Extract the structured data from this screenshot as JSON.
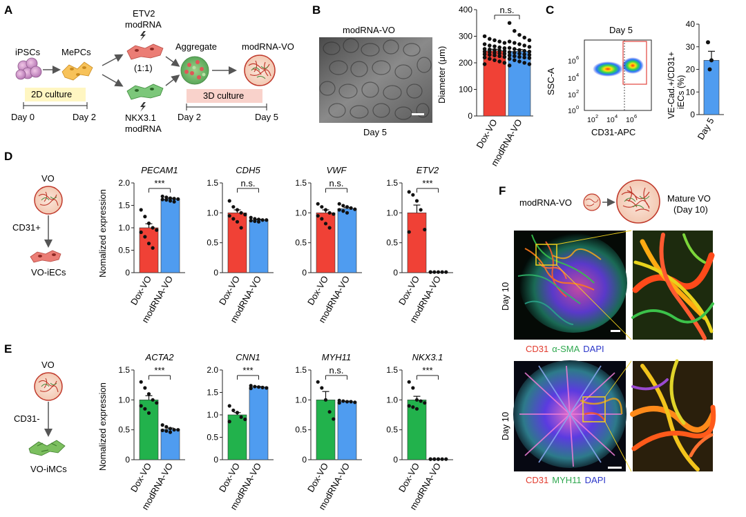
{
  "colors": {
    "dox": "#f04136",
    "modrna": "#4f9cf0",
    "green_bar": "#22b24c",
    "etv2_text": "#e0555a",
    "nkx_text": "#2fae3f",
    "culture2d": "#fff6c2",
    "culture3d": "#f9d2cb",
    "gate": "#e2433d",
    "panel_f_red": "#e23b2e",
    "panel_f_green": "#2fa84f",
    "panel_f_blue": "#2b36c9"
  },
  "panel_labels": {
    "a": "A",
    "b": "B",
    "c": "C",
    "d": "D",
    "e": "E",
    "f": "F"
  },
  "panel_a": {
    "ipscs": "iPSCs",
    "mepcs": "MePCs",
    "etv2": "ETV2",
    "modrna_top": "modRNA",
    "ratio": "(1:1)",
    "nkx": "NKX3.1",
    "modrna_bottom": "modRNA",
    "aggregate": "Aggregate",
    "modrna_vo": "modRNA-VO",
    "culture_2d": "2D culture",
    "culture_3d": "3D culture",
    "day0": "Day 0",
    "day2a": "Day 2",
    "day2b": "Day 2",
    "day5": "Day 5",
    "icons": [
      "ipsc-cluster-icon",
      "mepc-cells-icon",
      "etv2-cells-icon",
      "nkx-cells-icon",
      "aggregate-icon",
      "vascular-organoid-icon",
      "lightning-icon"
    ]
  },
  "panel_b": {
    "image_title": "modRNA-VO",
    "image_caption": "Day 5",
    "chart_data": {
      "type": "bar",
      "categories": [
        "Dox-VO",
        "modRNA-VO"
      ],
      "values": [
        245,
        243
      ],
      "errors": [
        6,
        7
      ],
      "ylabel": "Diameter (μm)",
      "ylim": [
        0,
        400
      ],
      "yticks": [
        0,
        100,
        200,
        300,
        400
      ],
      "significance": "n.s.",
      "points": [
        [
          300,
          290,
          285,
          280,
          275,
          270,
          265,
          262,
          258,
          255,
          252,
          250,
          248,
          246,
          244,
          242,
          240,
          238,
          236,
          234,
          232,
          230,
          228,
          225,
          222,
          220,
          215,
          210,
          205,
          200,
          195
        ],
        [
          350,
          320,
          305,
          295,
          285,
          280,
          275,
          270,
          265,
          260,
          256,
          252,
          248,
          245,
          242,
          240,
          238,
          235,
          232,
          230,
          228,
          225,
          222,
          220,
          218,
          215,
          210,
          205,
          200,
          195,
          190
        ]
      ]
    }
  },
  "panel_c": {
    "title": "Day 5",
    "flow_xlabel": "CD31-APC",
    "flow_ylabel": "SSC-A",
    "flow_xticks": [
      "10",
      "10",
      "10"
    ],
    "flow_xexp": [
      "2",
      "4",
      "6"
    ],
    "flow_yticks": [
      "10",
      "10",
      "10",
      "10"
    ],
    "flow_yexp": [
      "6",
      "4",
      "2",
      "0"
    ],
    "chart_data": {
      "type": "bar",
      "categories": [
        "Day 5"
      ],
      "values": [
        24
      ],
      "errors": [
        4
      ],
      "points": [
        [
          32,
          20,
          24
        ]
      ],
      "ylabel": "VE-Cad.+/CD31+ iECs (%)",
      "ylim": [
        0,
        40
      ],
      "yticks": [
        0,
        10,
        20,
        30,
        40
      ]
    }
  },
  "panel_d": {
    "schematic_top": "VO",
    "schematic_sort": "CD31+",
    "schematic_bottom": "VO-iECs",
    "ylabel": "Nomalized expression",
    "chart_data": [
      {
        "type": "bar",
        "title": "PECAM1",
        "categories": [
          "Dox-VO",
          "modRNA-VO"
        ],
        "values": [
          1.0,
          1.64
        ],
        "errors": [
          0.09,
          0.02
        ],
        "ylim": [
          0,
          2.0
        ],
        "yticks": [
          0,
          0.5,
          1.0,
          1.5,
          2.0
        ],
        "significance": "***",
        "points": [
          [
            1.4,
            1.25,
            1.1,
            1.0,
            0.95,
            0.9,
            0.8,
            0.65,
            0.55
          ],
          [
            1.7,
            1.68,
            1.66,
            1.65,
            1.64,
            1.63,
            1.62,
            1.6,
            1.58
          ]
        ]
      },
      {
        "type": "bar",
        "title": "CDH5",
        "categories": [
          "Dox-VO",
          "modRNA-VO"
        ],
        "values": [
          1.0,
          0.88
        ],
        "errors": [
          0.05,
          0.01
        ],
        "ylim": [
          0,
          1.5
        ],
        "yticks": [
          0,
          0.5,
          1.0,
          1.5
        ],
        "significance": "n.s.",
        "points": [
          [
            1.2,
            1.1,
            1.05,
            1.0,
            0.97,
            0.95,
            0.9,
            0.85,
            0.75
          ],
          [
            0.92,
            0.9,
            0.89,
            0.88,
            0.88,
            0.87,
            0.86,
            0.85
          ]
        ]
      },
      {
        "type": "bar",
        "title": "VWF",
        "categories": [
          "Dox-VO",
          "modRNA-VO"
        ],
        "values": [
          1.0,
          1.07
        ],
        "errors": [
          0.05,
          0.02
        ],
        "ylim": [
          0,
          1.5
        ],
        "yticks": [
          0,
          0.5,
          1.0,
          1.5
        ],
        "significance": "n.s.",
        "points": [
          [
            1.15,
            1.1,
            1.05,
            1.0,
            0.98,
            0.95,
            0.9,
            0.82,
            0.75
          ],
          [
            1.15,
            1.12,
            1.1,
            1.08,
            1.06,
            1.05,
            1.03,
            1.0
          ]
        ]
      },
      {
        "type": "bar",
        "title": "ETV2",
        "categories": [
          "Dox-VO",
          "modRNA-VO"
        ],
        "values": [
          1.0,
          0.01
        ],
        "errors": [
          0.13,
          0.0
        ],
        "ylim": [
          0,
          1.5
        ],
        "yticks": [
          0,
          0.5,
          1.0,
          1.5
        ],
        "significance": "***",
        "points": [
          [
            1.35,
            1.3,
            1.2,
            1.05,
            0.72,
            0.68
          ],
          [
            0.01,
            0.01,
            0.01,
            0.01,
            0.01,
            0.01
          ]
        ]
      }
    ]
  },
  "panel_e": {
    "schematic_top": "VO",
    "schematic_sort": "CD31-",
    "schematic_bottom": "VO-iMCs",
    "ylabel": "Nomalized expression",
    "chart_data": [
      {
        "type": "bar",
        "title": "ACTA2",
        "categories": [
          "Dox-VO",
          "modRNA-VO"
        ],
        "values": [
          1.0,
          0.51
        ],
        "errors": [
          0.07,
          0.02
        ],
        "ylim": [
          0,
          1.5
        ],
        "yticks": [
          0,
          0.5,
          1.0,
          1.5
        ],
        "significance": "***",
        "points": [
          [
            1.3,
            1.2,
            1.1,
            1.0,
            0.95,
            0.9,
            0.85,
            0.78
          ],
          [
            0.58,
            0.55,
            0.52,
            0.5,
            0.5,
            0.49,
            0.48,
            0.46
          ]
        ]
      },
      {
        "type": "bar",
        "title": "CNN1",
        "categories": [
          "Dox-VO",
          "modRNA-VO"
        ],
        "values": [
          1.0,
          1.62
        ],
        "errors": [
          0.05,
          0.01
        ],
        "ylim": [
          0,
          2.0
        ],
        "yticks": [
          0,
          0.5,
          1.0,
          1.5,
          2.0
        ],
        "significance": "***",
        "points": [
          [
            1.2,
            1.1,
            1.05,
            0.95,
            0.9,
            0.85
          ],
          [
            1.65,
            1.63,
            1.62,
            1.61,
            1.6,
            1.59
          ]
        ]
      },
      {
        "type": "bar",
        "title": "MYH11",
        "categories": [
          "Dox-VO",
          "modRNA-VO"
        ],
        "values": [
          1.0,
          0.97
        ],
        "errors": [
          0.14,
          0.01
        ],
        "ylim": [
          0,
          1.5
        ],
        "yticks": [
          0,
          0.5,
          1.0,
          1.5
        ],
        "significance": "n.s.",
        "points": [
          [
            1.3,
            1.2,
            1.0,
            0.8,
            0.68
          ],
          [
            0.99,
            0.98,
            0.97,
            0.97,
            0.96,
            0.95
          ]
        ]
      },
      {
        "type": "bar",
        "title": "NKX3.1",
        "categories": [
          "Dox-VO",
          "modRNA-VO"
        ],
        "values": [
          1.0,
          0.01
        ],
        "errors": [
          0.06,
          0.0
        ],
        "ylim": [
          0,
          1.5
        ],
        "yticks": [
          0,
          0.5,
          1.0,
          1.5
        ],
        "significance": "***",
        "points": [
          [
            1.3,
            1.2,
            1.0,
            0.98,
            0.95,
            0.9,
            0.88,
            0.85
          ],
          [
            0.01,
            0.01,
            0.01,
            0.01,
            0.01,
            0.01,
            0.01,
            0.01
          ]
        ]
      }
    ]
  },
  "panel_f": {
    "modrna_vo": "modRNA-VO",
    "mature_vo": "Mature VO",
    "mature_day": "(Day 10)",
    "day_top": "Day 10",
    "day_bottom": "Day 10",
    "legend_top": {
      "cd31": "CD31",
      "marker": "α-SMA",
      "dapi": "DAPI"
    },
    "legend_bottom": {
      "cd31": "CD31",
      "marker": "MYH11",
      "dapi": "DAPI"
    }
  }
}
